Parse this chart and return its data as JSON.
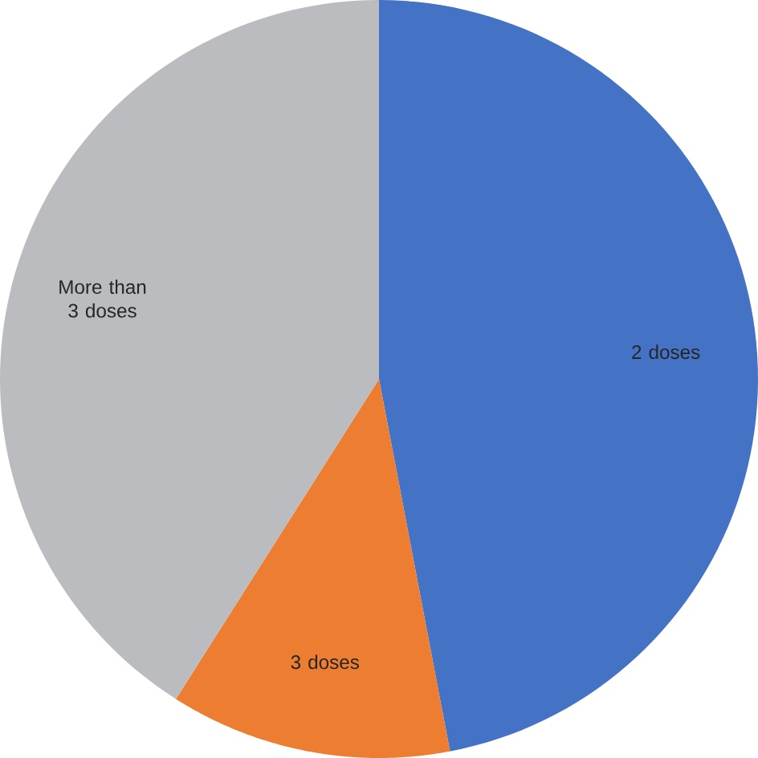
{
  "chart_data": {
    "type": "pie",
    "categories": [
      "2 doses",
      "3 doses",
      "More than 3 doses"
    ],
    "values": [
      47,
      12,
      41
    ],
    "colors": [
      "#4472c4",
      "#ed7d31",
      "#bbbcbf"
    ]
  }
}
